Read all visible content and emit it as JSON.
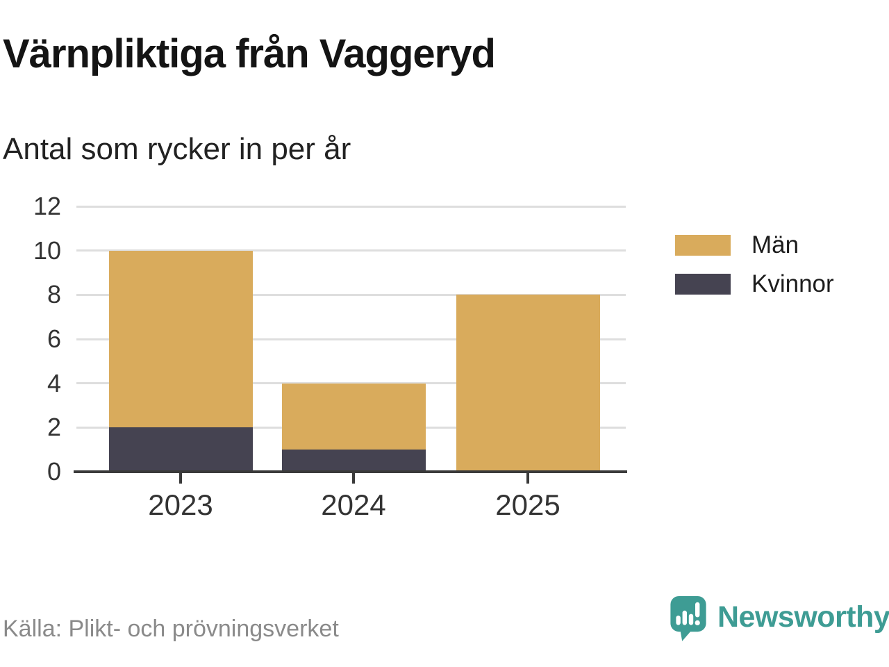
{
  "header": {
    "title": "Värnpliktiga från Vaggeryd",
    "subtitle": "Antal som rycker in per år"
  },
  "chart_data": {
    "type": "bar",
    "stacked": true,
    "title": "Värnpliktiga från Vaggeryd",
    "subtitle": "Antal som rycker in per år",
    "categories": [
      "2023",
      "2024",
      "2025"
    ],
    "series": [
      {
        "name": "Män",
        "color": "#D9AB5C",
        "values": [
          8,
          3,
          8
        ]
      },
      {
        "name": "Kvinnor",
        "color": "#454351",
        "values": [
          2,
          1,
          0
        ]
      }
    ],
    "stack_order_bottom_to_top": [
      "Kvinnor",
      "Män"
    ],
    "totals": [
      10,
      4,
      8
    ],
    "xlabel": "",
    "ylabel": "",
    "ylim": [
      0,
      12
    ],
    "yticks": [
      0,
      2,
      4,
      6,
      8,
      10,
      12
    ],
    "grid": "horizontal",
    "legend_position": "right"
  },
  "legend": {
    "items": [
      "Män",
      "Kvinnor"
    ]
  },
  "footer": {
    "source": "Källa: Plikt- och prövningsverket",
    "brand": "Newsworthy",
    "brand_color": "#3E9C94"
  },
  "colors": {
    "man": "#D9AB5C",
    "kvinnor": "#454351",
    "axis": "#3A3A3A",
    "gridline": "#DEDEDE",
    "tick_text": "#333333",
    "source_text": "#8A8A8A"
  }
}
